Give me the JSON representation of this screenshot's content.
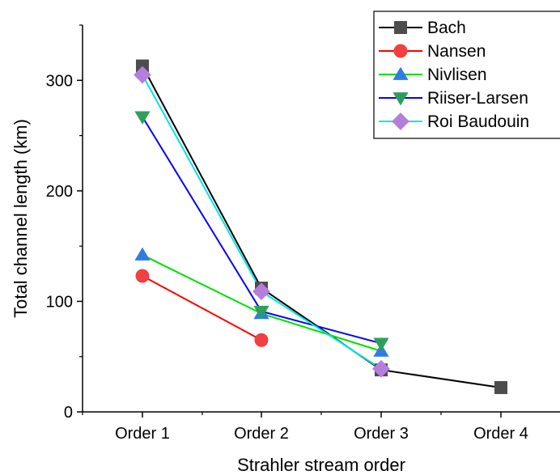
{
  "chart_data": {
    "type": "line",
    "title": "",
    "xlabel": "Strahler stream order",
    "ylabel": "Total channel length (km)",
    "categories": [
      "Order 1",
      "Order 2",
      "Order 3",
      "Order 4"
    ],
    "ylim": [
      0,
      350
    ],
    "yticks": [
      0,
      100,
      200,
      300
    ],
    "grid": false,
    "legend": "top-right",
    "series": [
      {
        "name": "Bach",
        "color": "#000000",
        "marker_color": "#4d4d4d",
        "marker": "square",
        "values": [
          313,
          112,
          38,
          22
        ]
      },
      {
        "name": "Nansen",
        "color": "#ff0000",
        "marker_color": "#f04040",
        "marker": "circle",
        "values": [
          123,
          65,
          null,
          null
        ]
      },
      {
        "name": "Nivlisen",
        "color": "#00e000",
        "marker_color": "#2f7de1",
        "marker": "triangle-up",
        "values": [
          142,
          89,
          55,
          null
        ]
      },
      {
        "name": "Riiser-Larsen",
        "color": "#0000ff",
        "marker_color": "#2ca05a",
        "marker": "triangle-down",
        "values": [
          267,
          91,
          62,
          null
        ]
      },
      {
        "name": "Roi Baudouin",
        "color": "#00e5e5",
        "marker_color": "#b57edc",
        "marker": "diamond",
        "values": [
          305,
          109,
          39,
          null
        ]
      }
    ]
  }
}
